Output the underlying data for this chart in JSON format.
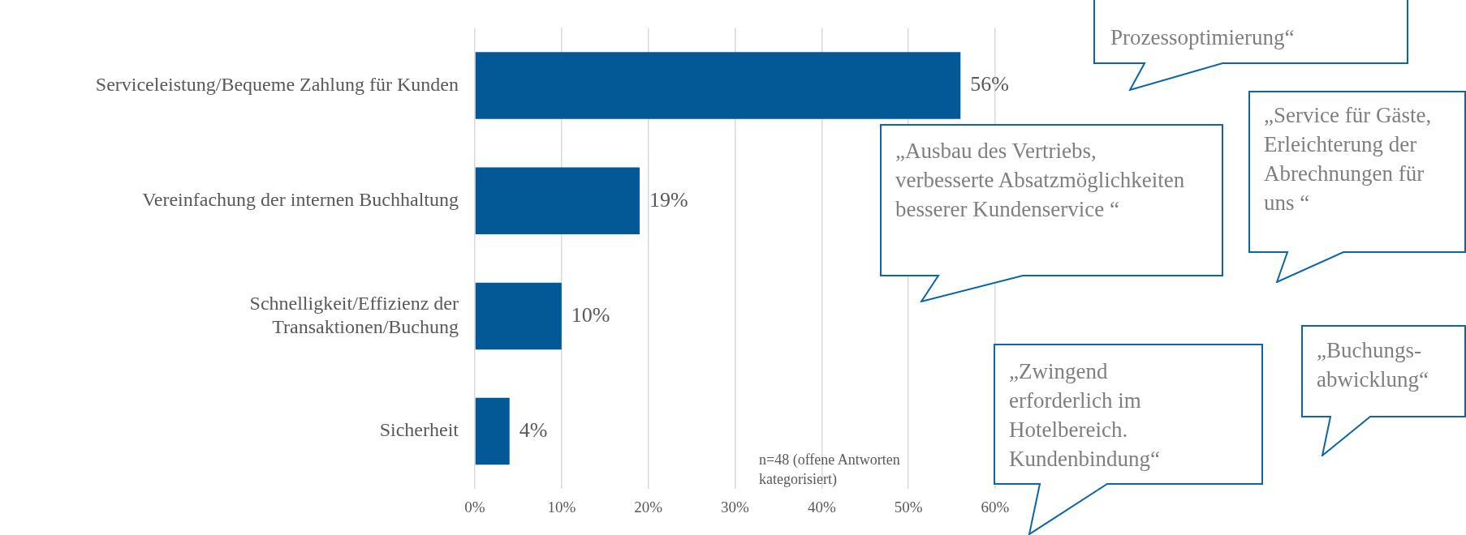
{
  "chart_data": {
    "type": "bar",
    "orientation": "horizontal",
    "categories": [
      "Serviceleistung/Bequeme Zahlung für Kunden",
      "Vereinfachung der internen Buchhaltung",
      "Schnelligkeit/Effizienz der Transaktionen/Buchung",
      "Sicherheit"
    ],
    "values": [
      56,
      19,
      10,
      4
    ],
    "value_labels": [
      "56%",
      "19%",
      "10%",
      "4%"
    ],
    "color": "#025996",
    "xlim": [
      0,
      60
    ],
    "xticks": [
      {
        "value": 0,
        "label": "0%"
      },
      {
        "value": 10,
        "label": "10%"
      },
      {
        "value": 20,
        "label": "20%"
      },
      {
        "value": 30,
        "label": "30%"
      },
      {
        "value": 40,
        "label": "40%"
      },
      {
        "value": 50,
        "label": "50%"
      },
      {
        "value": 60,
        "label": "60%"
      }
    ],
    "grid": "x",
    "annotations": [
      "n=48 (offene Antworten kategorisiert)",
      "Prozessoptimierung“",
      "„Ausbau des Vertriebs, verbesserte Absatzmöglichkeiten besserer Kundenservice “",
      "„Service für Gäste, Erleichterung der Abrechnungen für uns “",
      "„Zwingend erforderlich im Hotelbereich. Kundenbindung“",
      "„Buchungs-abwicklung“"
    ]
  }
}
